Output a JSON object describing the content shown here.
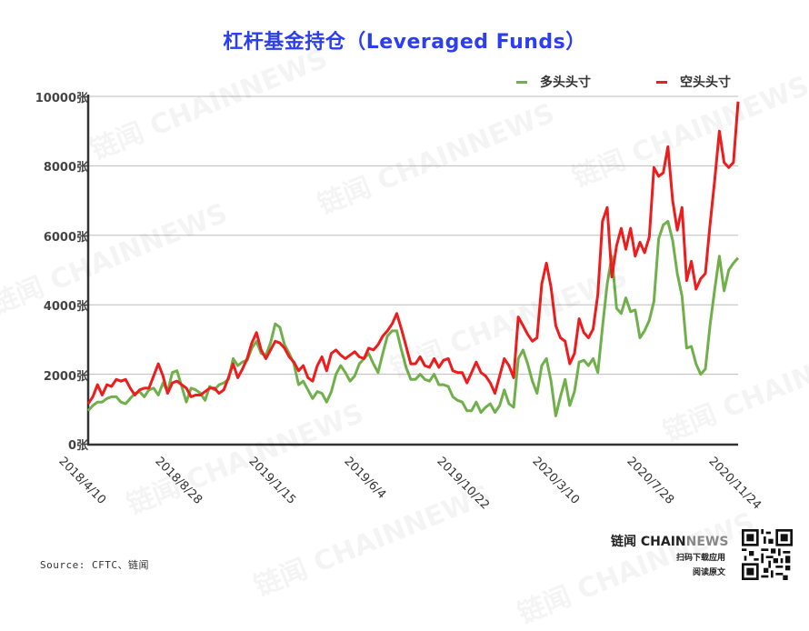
{
  "title": "杠杆基金持仓（Leveraged Funds）",
  "legend": {
    "long": {
      "label": "多头头寸",
      "color": "#70b04a"
    },
    "short": {
      "label": "空头头寸",
      "color": "#ee1c1c"
    }
  },
  "footer": {
    "source": "Source: CFTC、链闻",
    "brand_cn": "链闻 ",
    "brand_chain": "CHAIN",
    "brand_news": "NEWS",
    "scan_text": "扫码下载应用",
    "read_text": "阅读原文"
  },
  "watermark": "链闻 CHAINNEWS",
  "chart_data": {
    "type": "line",
    "title": "杠杆基金持仓（Leveraged Funds）",
    "xlabel": "",
    "ylabel": "",
    "ylim": [
      0,
      10000
    ],
    "y_ticks": [
      "0张",
      "2000张",
      "4000张",
      "6000张",
      "8000张",
      "10000张"
    ],
    "y_tick_values": [
      0,
      2000,
      4000,
      6000,
      8000,
      10000
    ],
    "x_ticks": [
      "2018/4/10",
      "2018/8/28",
      "2019/1/15",
      "2019/6/4",
      "2019/10/22",
      "2020/3/10",
      "2020/7/28",
      "2020/11/24"
    ],
    "grid": "horizontal",
    "legend_position": "top-right",
    "series": [
      {
        "name": "多头头寸",
        "color": "#70b04a",
        "values": [
          950,
          1100,
          1200,
          1200,
          1300,
          1350,
          1350,
          1200,
          1150,
          1300,
          1450,
          1500,
          1350,
          1550,
          1600,
          1400,
          1750,
          1500,
          2050,
          2100,
          1650,
          1200,
          1600,
          1550,
          1450,
          1250,
          1650,
          1550,
          1700,
          1750,
          1850,
          2450,
          2250,
          2350,
          2400,
          2750,
          2950,
          2600,
          2550,
          2900,
          3450,
          3350,
          2850,
          2600,
          2300,
          1700,
          1800,
          1550,
          1300,
          1500,
          1450,
          1200,
          1500,
          2000,
          2250,
          2050,
          1800,
          1950,
          2300,
          2450,
          2600,
          2300,
          2050,
          2600,
          3100,
          3250,
          3250,
          2700,
          2200,
          1850,
          1850,
          2000,
          1850,
          1800,
          2000,
          1700,
          1700,
          1650,
          1350,
          1250,
          1200,
          950,
          950,
          1200,
          900,
          1050,
          1150,
          900,
          1100,
          1550,
          1150,
          1050,
          2450,
          2700,
          2300,
          1800,
          1450,
          2250,
          2450,
          1800,
          800,
          1350,
          1850,
          1100,
          1500,
          2350,
          2400,
          2250,
          2450,
          2050,
          3350,
          4600,
          5400,
          3900,
          3750,
          4200,
          3800,
          3850,
          3050,
          3250,
          3550,
          4100,
          5900,
          6300,
          6400,
          5850,
          4900,
          4250,
          2750,
          2800,
          2300,
          2000,
          2150,
          3400,
          4450,
          5400,
          4400,
          5000,
          5200,
          5350
        ]
      },
      {
        "name": "空头头寸",
        "color": "#ee1c1c",
        "values": [
          1150,
          1350,
          1700,
          1400,
          1700,
          1650,
          1850,
          1800,
          1850,
          1600,
          1400,
          1550,
          1600,
          1600,
          1950,
          2300,
          1950,
          1450,
          1750,
          1800,
          1700,
          1600,
          1350,
          1400,
          1400,
          1500,
          1600,
          1600,
          1450,
          1550,
          1900,
          2300,
          1900,
          2150,
          2450,
          2900,
          3200,
          2700,
          2450,
          2700,
          2950,
          2900,
          2750,
          2500,
          2350,
          2100,
          2250,
          1900,
          1800,
          2250,
          2500,
          2100,
          2600,
          2700,
          2550,
          2450,
          2550,
          2650,
          2500,
          2450,
          2750,
          2700,
          2850,
          3100,
          3250,
          3450,
          3750,
          3300,
          2800,
          2300,
          2300,
          2500,
          2250,
          2200,
          2450,
          2200,
          2400,
          2450,
          2100,
          2050,
          2050,
          1750,
          2050,
          2350,
          2050,
          1950,
          1750,
          1450,
          1950,
          2450,
          2250,
          1900,
          3650,
          3400,
          3150,
          2950,
          3050,
          4600,
          5200,
          4500,
          3400,
          3050,
          2950,
          2300,
          2600,
          3600,
          3200,
          3050,
          3300,
          4300,
          6400,
          6800,
          4800,
          5700,
          6200,
          5600,
          6200,
          5400,
          5800,
          5500,
          5950,
          7950,
          7700,
          7800,
          8550,
          7000,
          6150,
          6800,
          4700,
          5250,
          4450,
          4750,
          4900,
          6300,
          7600,
          9000,
          8100,
          7950,
          8100,
          9850
        ]
      }
    ]
  }
}
